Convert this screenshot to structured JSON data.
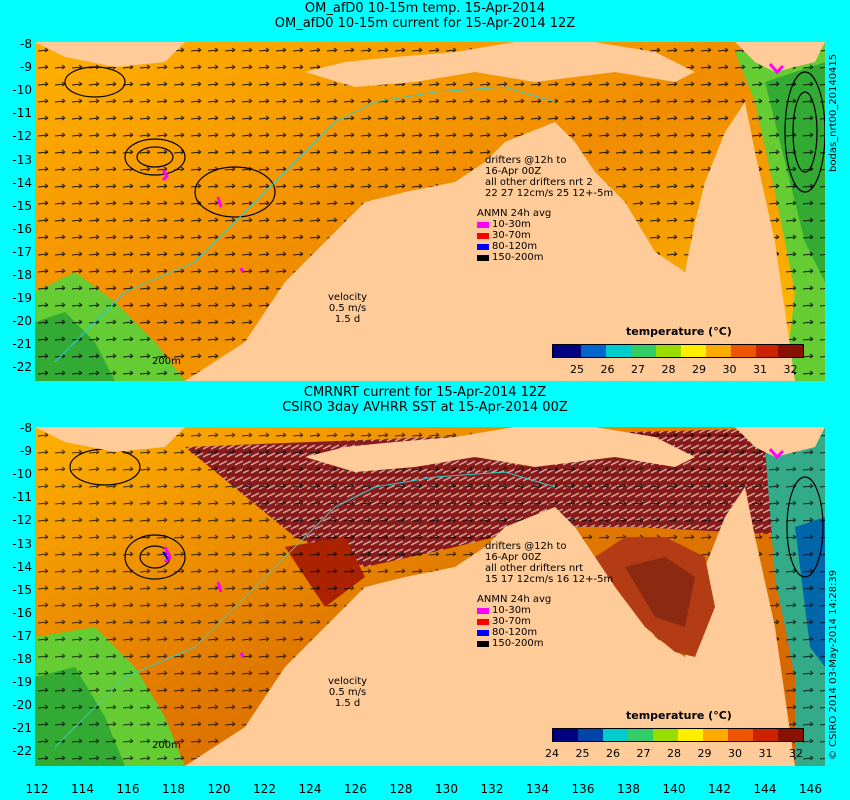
{
  "top": {
    "title1": "OM_afD0 10-15m temp. 15-Apr-2014",
    "title2": "OM_afD0 10-15m current for 15-Apr-2014 12Z",
    "side_label": "bodas_nrt00_20140415",
    "drifters": [
      "drifters @12h to",
      "16-Apr 00Z",
      "all other drifters nrt 2",
      "22   27     12cm/s  25 12+-5m"
    ],
    "anmn_title": "ANMN 24h avg",
    "anmn_items": [
      {
        "label": "10-30m",
        "color": "#ff00ff"
      },
      {
        "label": "30-70m",
        "color": "#ff0000"
      },
      {
        "label": "80-120m",
        "color": "#0000ff"
      },
      {
        "label": "150-200m",
        "color": "#000000"
      }
    ],
    "velocity": [
      "velocity",
      "0.5 m/s",
      "1.5 d"
    ],
    "isobath": "200m",
    "colorbar_title": "temperature (°C)",
    "colorbar_ticks": [
      "25",
      "26",
      "27",
      "28",
      "29",
      "30",
      "31",
      "32"
    ]
  },
  "bottom": {
    "title1": "CMRNRT current for 15-Apr-2014 12Z",
    "title2": "CSIRO 3day AVHRR SST at 15-Apr-2014 00Z",
    "side_label": "© CSIRO 2014  03-May-2014 14:28:39",
    "drifters": [
      "drifters @12h to",
      "16-Apr 00Z",
      "all other drifters nrt",
      "15 17 12cm/s  16 12+-5m"
    ],
    "anmn_title": "ANMN 24h avg",
    "anmn_items": [
      {
        "label": "10-30m",
        "color": "#ff00ff"
      },
      {
        "label": "30-70m",
        "color": "#ff0000"
      },
      {
        "label": "80-120m",
        "color": "#0000ff"
      },
      {
        "label": "150-200m",
        "color": "#000000"
      }
    ],
    "velocity": [
      "velocity",
      "0.5 m/s",
      "1.5 d"
    ],
    "isobath": "200m",
    "colorbar_title": "temperature (°C)",
    "colorbar_ticks": [
      "24",
      "25",
      "26",
      "27",
      "28",
      "29",
      "30",
      "31",
      "32"
    ]
  },
  "lat_labels": [
    "-8",
    "-9",
    "-10",
    "-11",
    "-12",
    "-13",
    "-14",
    "-15",
    "-16",
    "-17",
    "-18",
    "-19",
    "-20",
    "-21",
    "-22"
  ],
  "lon_labels": [
    "112",
    "114",
    "116",
    "118",
    "120",
    "122",
    "124",
    "126",
    "128",
    "130",
    "132",
    "134",
    "136",
    "138",
    "140",
    "142",
    "144",
    "146"
  ],
  "colors": {
    "background": "#00ffff",
    "land": "#ffcc99",
    "ocean_warm": "#f0a000",
    "ocean_mid": "#ffd200",
    "ocean_cool": "#66cc33",
    "no_data": "#c8a8a0"
  }
}
